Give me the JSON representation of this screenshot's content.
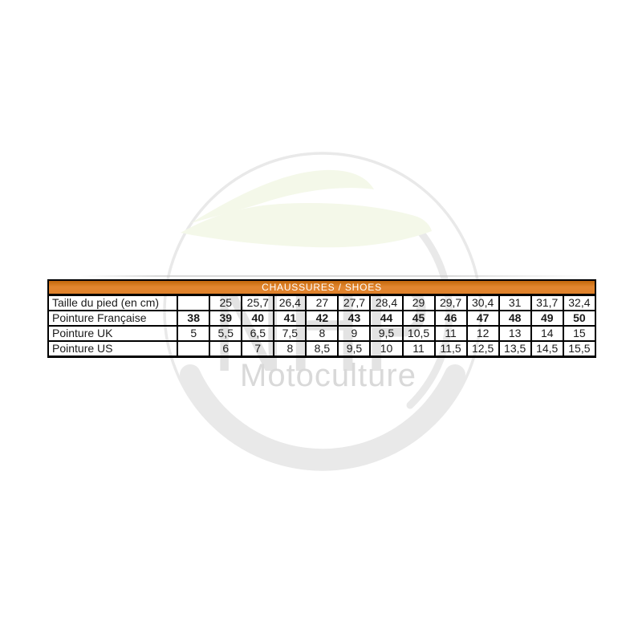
{
  "watermark": {
    "letters": "NHP",
    "brand": "Motoculture",
    "leaf_color": "#f4f8e9",
    "gray": "#e9e9e9",
    "letters_color": "#e3e3e3",
    "brand_color": "#d9d9d9"
  },
  "table": {
    "header": "CHAUSSURES / SHOES",
    "header_bg": "#e0832a",
    "rows": [
      {
        "label": "Taille du pied (en cm)",
        "bold_values": false,
        "values": [
          "",
          "25",
          "25,7",
          "26,4",
          "27",
          "27,7",
          "28,4",
          "29",
          "29,7",
          "30,4",
          "31",
          "31,7",
          "32,4"
        ]
      },
      {
        "label": "Pointure Française",
        "bold_values": true,
        "values": [
          "38",
          "39",
          "40",
          "41",
          "42",
          "43",
          "44",
          "45",
          "46",
          "47",
          "48",
          "49",
          "50"
        ]
      },
      {
        "label": "Pointure UK",
        "bold_values": false,
        "values": [
          "5",
          "5,5",
          "6,5",
          "7,5",
          "8",
          "9",
          "9,5",
          "10,5",
          "11",
          "12",
          "13",
          "14",
          "15"
        ]
      },
      {
        "label": "Pointure US",
        "bold_values": false,
        "values": [
          "",
          "6",
          "7",
          "8",
          "8,5",
          "9,5",
          "10",
          "11",
          "11,5",
          "12,5",
          "13,5",
          "14,5",
          "15,5"
        ]
      }
    ]
  }
}
